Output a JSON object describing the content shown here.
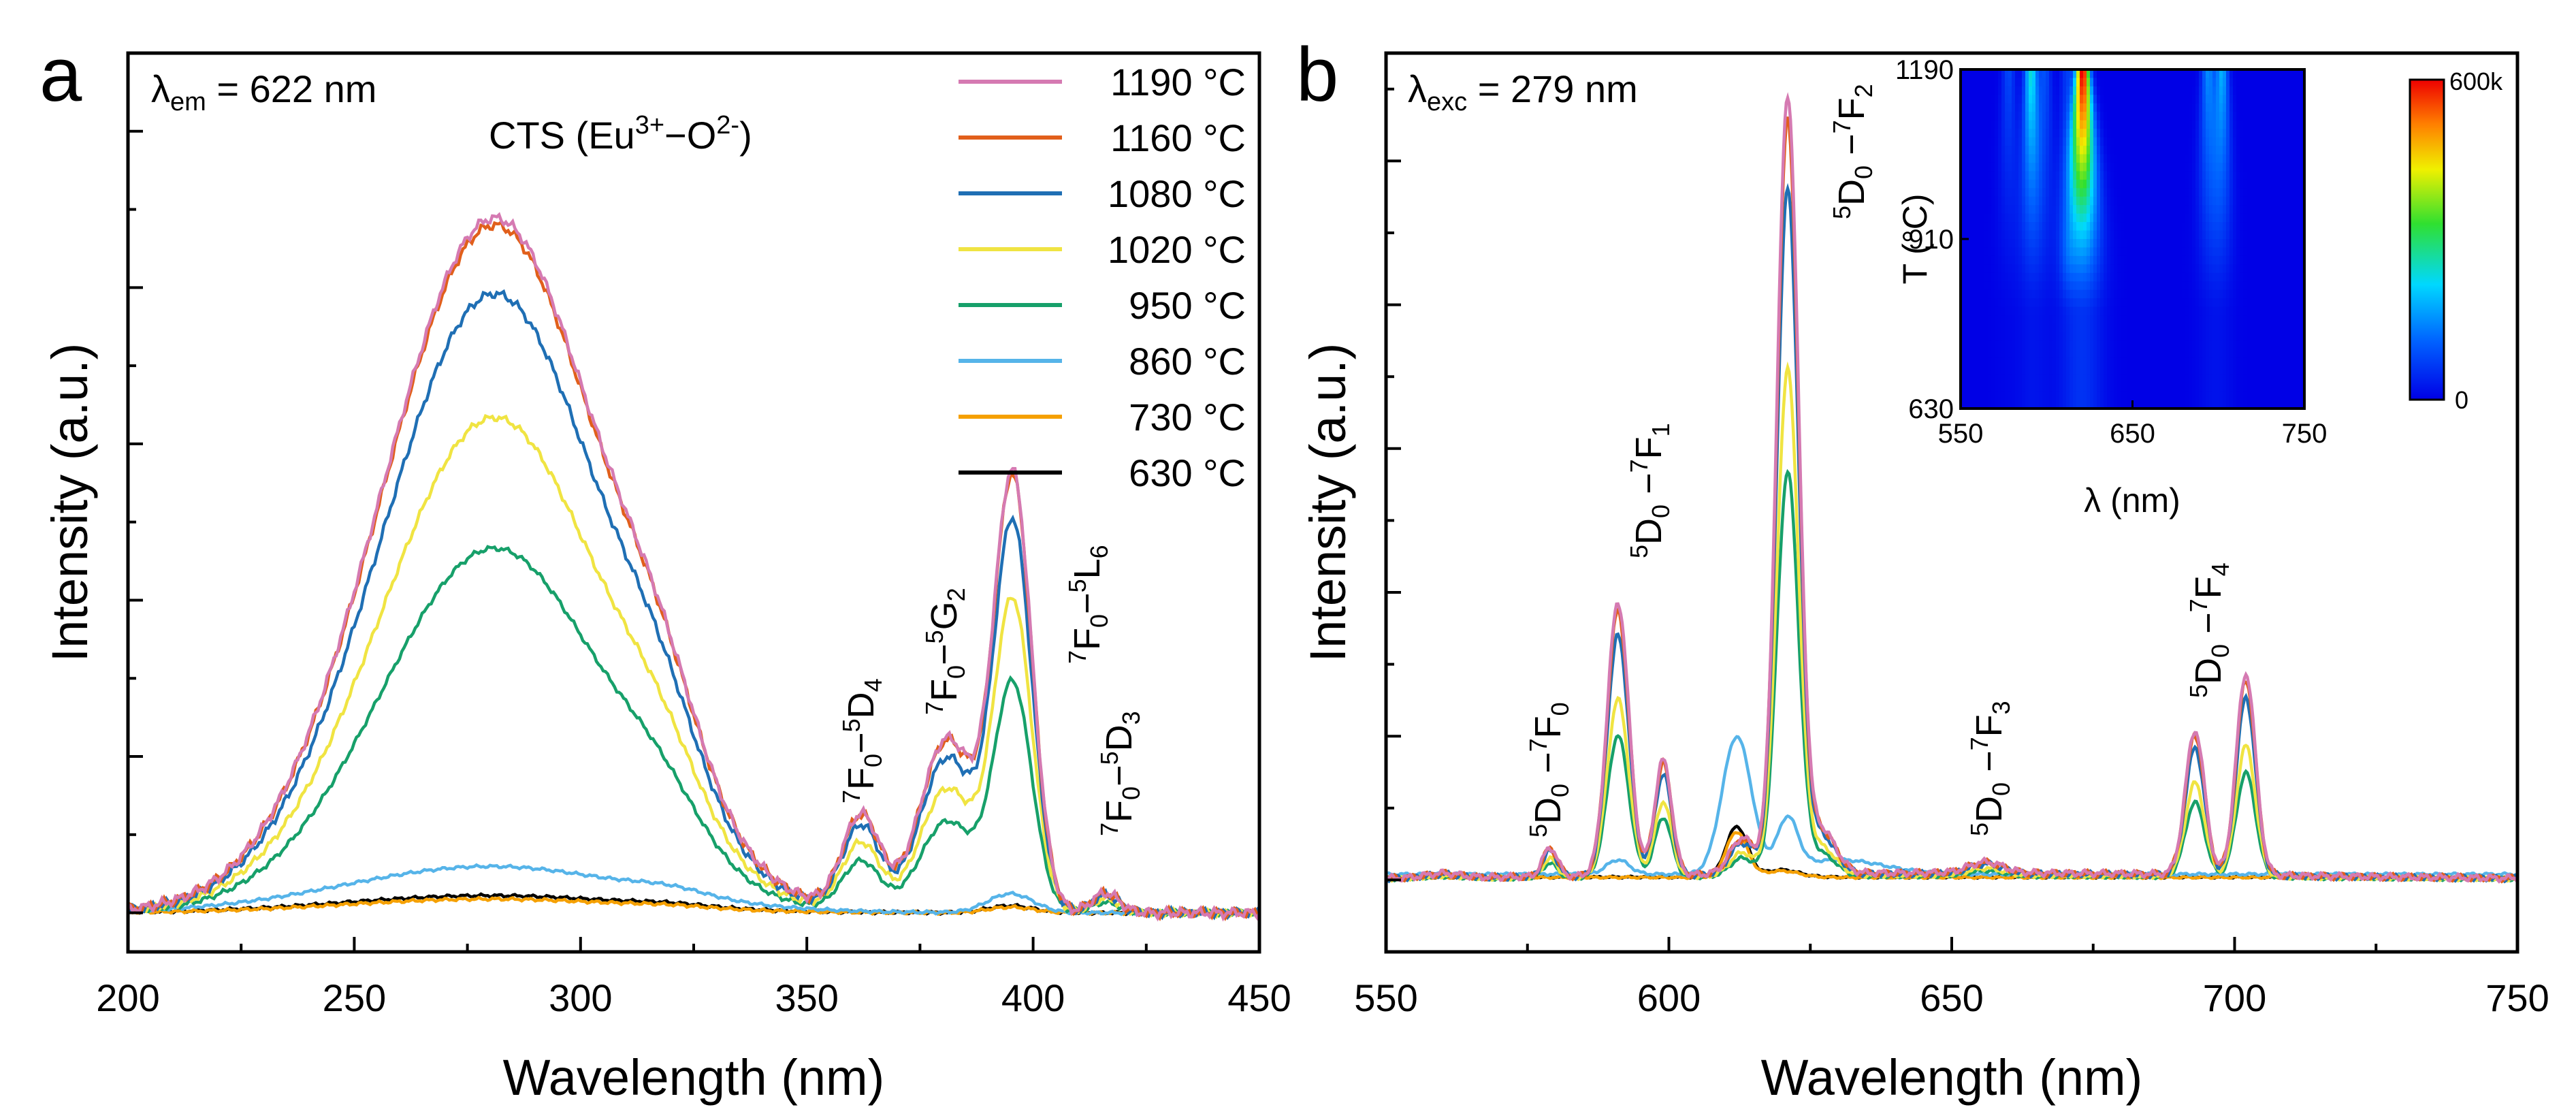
{
  "chart_data": [
    {
      "panel": "a",
      "type": "line",
      "title": "",
      "xlabel": "Wavelength (nm)",
      "ylabel": "Intensity (a.u.)",
      "xlim": [
        200,
        450
      ],
      "ylim": [
        -0.05,
        1.1
      ],
      "xticks": [
        200,
        250,
        300,
        350,
        400,
        450
      ],
      "x_tick_labels": [
        "200",
        "250",
        "300",
        "350",
        "400",
        "450"
      ],
      "condition": {
        "prefix": "λ",
        "sub": "em",
        "rest": " = 622 nm"
      },
      "annotations": {
        "cts": {
          "main": "CTS (Eu",
          "sup1": "3+",
          "mid": "−O",
          "sup2": "2-",
          "end": ")"
        },
        "transitions": [
          {
            "id": "7F0-5D4",
            "sup1": "7",
            "a": "F",
            "sub1": "0",
            "dash": "−",
            "sup2": "5",
            "b": "D",
            "sub2": "4"
          },
          {
            "id": "7F0-5G2",
            "sup1": "7",
            "a": "F",
            "sub1": "0",
            "dash": "−",
            "sup2": "5",
            "b": "G",
            "sub2": "2"
          },
          {
            "id": "7F0-5L6",
            "sup1": "7",
            "a": "F",
            "sub1": "0",
            "dash": "−",
            "sup2": "5",
            "b": "L",
            "sub2": "6"
          },
          {
            "id": "7F0-5D3",
            "sup1": "7",
            "a": "F",
            "sub1": "0",
            "dash": "−",
            "sup2": "5",
            "b": "D",
            "sub2": "3"
          }
        ]
      },
      "legend": {
        "position": "top-right"
      },
      "series": [
        {
          "name": "630 °C",
          "color": "#000000",
          "shape": "low",
          "scale": 0.0,
          "baseline_scale": 1.0
        },
        {
          "name": "730 °C",
          "color": "#f5a000",
          "shape": "low",
          "scale": 0.0,
          "baseline_scale": 0.8
        },
        {
          "name": "860 °C",
          "color": "#56b4e9",
          "shape": "low",
          "scale": 0.0,
          "baseline_scale": 2.7
        },
        {
          "name": "950 °C",
          "color": "#17a06a",
          "shape": "main",
          "scale": 0.53
        },
        {
          "name": "1020 °C",
          "color": "#f0e442",
          "shape": "main",
          "scale": 0.72
        },
        {
          "name": "1080 °C",
          "color": "#1f6fb4",
          "shape": "main",
          "scale": 0.9
        },
        {
          "name": "1160 °C",
          "color": "#e15f1b",
          "shape": "main",
          "scale": 1.0
        },
        {
          "name": "1190 °C",
          "color": "#d57ab2",
          "shape": "main",
          "scale": 1.01
        }
      ]
    },
    {
      "panel": "b",
      "type": "line",
      "title": "",
      "xlabel": "Wavelength (nm)",
      "ylabel": "Intensity (a.u.)",
      "xlim": [
        550,
        750
      ],
      "ylim": [
        -0.1,
        1.15
      ],
      "xticks": [
        550,
        600,
        650,
        700,
        750
      ],
      "x_tick_labels": [
        "550",
        "600",
        "650",
        "700",
        "750"
      ],
      "condition": {
        "prefix": "λ",
        "sub": "exc",
        "rest": " = 279 nm"
      },
      "annotations": {
        "transitions": [
          {
            "id": "5D0-7F0",
            "sup1": "5",
            "a": "D",
            "sub1": "0",
            "dash": " −",
            "sup2": "7",
            "b": "F",
            "sub2": "0"
          },
          {
            "id": "5D0-7F1",
            "sup1": "5",
            "a": "D",
            "sub1": "0",
            "dash": " −",
            "sup2": "7",
            "b": "F",
            "sub2": "1"
          },
          {
            "id": "5D0-7F2",
            "sup1": "5",
            "a": "D",
            "sub1": "0",
            "dash": " −",
            "sup2": "7",
            "b": "F",
            "sub2": "2"
          },
          {
            "id": "5D0-7F3",
            "sup1": "5",
            "a": "D",
            "sub1": "0",
            "dash": " −",
            "sup2": "7",
            "b": "F",
            "sub2": "3"
          },
          {
            "id": "5D0-7F4",
            "sup1": "5",
            "a": "D",
            "sub1": "0",
            "dash": " −",
            "sup2": "7",
            "b": "F",
            "sub2": "4"
          }
        ]
      },
      "series": [
        {
          "name": "630 °C",
          "color": "#000000",
          "shape": "low",
          "scale": 0.0
        },
        {
          "name": "730 °C",
          "color": "#f5a000",
          "shape": "low",
          "scale": 0.0
        },
        {
          "name": "860 °C",
          "color": "#56b4e9",
          "shape": "low860",
          "scale": 0.0
        },
        {
          "name": "950 °C",
          "color": "#17a06a",
          "shape": "main",
          "scale": 0.52
        },
        {
          "name": "1020 °C",
          "color": "#f0e442",
          "shape": "main",
          "scale": 0.65
        },
        {
          "name": "1080 °C",
          "color": "#1f6fb4",
          "shape": "main",
          "scale": 0.88
        },
        {
          "name": "1160 °C",
          "color": "#e15f1b",
          "shape": "main",
          "scale": 0.97
        },
        {
          "name": "1190 °C",
          "color": "#d57ab2",
          "shape": "main",
          "scale": 1.0
        }
      ],
      "inset": {
        "type": "heatmap",
        "xlabel": "λ (nm)",
        "ylabel": "T (°C)",
        "xlim": [
          550,
          750
        ],
        "ylim": [
          630,
          1190
        ],
        "xticks": [
          "550",
          "650",
          "750"
        ],
        "yticks": [
          "630",
          "910",
          "1190"
        ],
        "colorbar": {
          "min_label": "0",
          "max_label": "600k"
        },
        "bands_nm": [
          578,
          591,
          599,
          612,
          621,
          694,
          702
        ],
        "band_weights": [
          0.12,
          0.36,
          0.13,
          0.1,
          1.0,
          0.22,
          0.27
        ],
        "colormap": [
          "#0000e6",
          "#0060ff",
          "#00d8ff",
          "#30e030",
          "#f0f000",
          "#ff8000",
          "#ee0000"
        ]
      }
    }
  ],
  "panel_labels": [
    "a",
    "b"
  ]
}
